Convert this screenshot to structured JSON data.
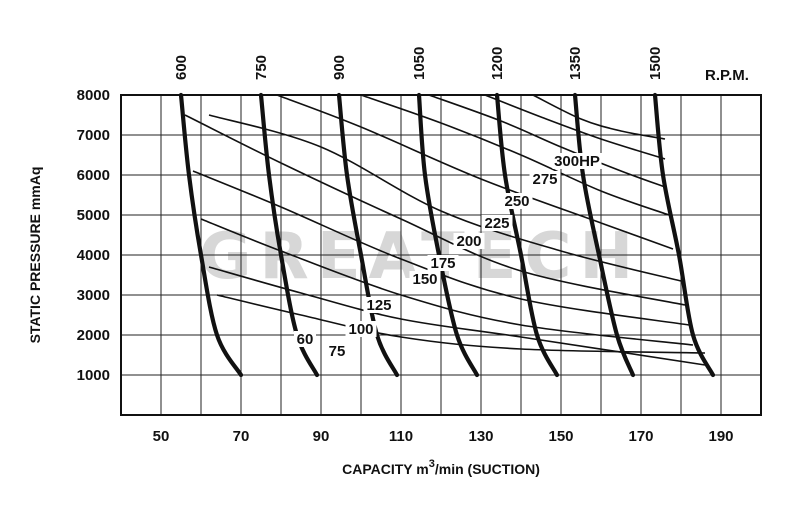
{
  "chart_data": {
    "type": "line",
    "xlabel": "CAPACITY",
    "xlabel_unit_base": "m",
    "xlabel_unit_sup": "3",
    "xlabel_unit_rest": "/min  (SUCTION)",
    "ylabel": "STATIC  PRESSURE  mmAq",
    "x_ticks": [
      "50",
      "70",
      "90",
      "110",
      "130",
      "150",
      "170",
      "190"
    ],
    "y_ticks": [
      "1000",
      "2000",
      "3000",
      "4000",
      "5000",
      "6000",
      "7000",
      "8000"
    ],
    "xlim": [
      40,
      200
    ],
    "ylim": [
      0,
      8000
    ],
    "grid": true,
    "watermark": "GREATECH",
    "rpm_unit_label": "R.P.M.",
    "rpm_series": [
      {
        "name": "600",
        "points": [
          [
            55,
            8000
          ],
          [
            57,
            6000
          ],
          [
            60,
            4000
          ],
          [
            64,
            2000
          ],
          [
            70,
            1000
          ]
        ]
      },
      {
        "name": "750",
        "points": [
          [
            75,
            8000
          ],
          [
            77,
            6000
          ],
          [
            80,
            4000
          ],
          [
            84,
            2000
          ],
          [
            89,
            1000
          ]
        ]
      },
      {
        "name": "900",
        "points": [
          [
            94.5,
            8000
          ],
          [
            96.5,
            6000
          ],
          [
            100,
            4000
          ],
          [
            104,
            2000
          ],
          [
            109,
            1000
          ]
        ]
      },
      {
        "name": "1050",
        "points": [
          [
            114.5,
            8000
          ],
          [
            116,
            6000
          ],
          [
            119.5,
            4000
          ],
          [
            124,
            2000
          ],
          [
            129,
            1000
          ]
        ]
      },
      {
        "name": "1200",
        "points": [
          [
            134,
            8000
          ],
          [
            136,
            6000
          ],
          [
            140,
            4000
          ],
          [
            144,
            2000
          ],
          [
            149,
            1000
          ]
        ]
      },
      {
        "name": "1350",
        "points": [
          [
            153.5,
            8000
          ],
          [
            155.5,
            6000
          ],
          [
            159.5,
            4000
          ],
          [
            164,
            2000
          ],
          [
            168,
            1000
          ]
        ]
      },
      {
        "name": "1500",
        "points": [
          [
            173.5,
            8000
          ],
          [
            175.5,
            6000
          ],
          [
            179.5,
            4000
          ],
          [
            183,
            2000
          ],
          [
            188,
            1000
          ]
        ]
      }
    ],
    "hp_series": [
      {
        "name": "60",
        "label_at": [
          86,
          1800
        ],
        "points": [
          [
            64,
            3000
          ],
          [
            85,
            2500
          ],
          [
            110,
            1950
          ],
          [
            140,
            1650
          ],
          [
            186,
            1550
          ]
        ]
      },
      {
        "name": "75",
        "label_at": [
          94,
          1500
        ],
        "points": [
          [
            62,
            3700
          ],
          [
            85,
            3050
          ],
          [
            110,
            2400
          ],
          [
            140,
            1950
          ],
          [
            186,
            1250
          ]
        ]
      },
      {
        "name": "100",
        "label_at": [
          100,
          2050
        ],
        "points": [
          [
            60,
            4900
          ],
          [
            80,
            4100
          ],
          [
            110,
            3000
          ],
          [
            140,
            2250
          ],
          [
            183,
            1750
          ]
        ]
      },
      {
        "name": "125",
        "label_at": [
          104.5,
          2650
        ],
        "points": [
          [
            58,
            6100
          ],
          [
            80,
            5200
          ],
          [
            110,
            3900
          ],
          [
            140,
            2900
          ],
          [
            182,
            2250
          ]
        ]
      },
      {
        "name": "150",
        "label_at": [
          116,
          3300
        ],
        "points": [
          [
            56,
            7500
          ],
          [
            80,
            6300
          ],
          [
            110,
            4900
          ],
          [
            140,
            3600
          ],
          [
            181,
            2750
          ]
        ]
      },
      {
        "name": "175",
        "label_at": [
          120.5,
          3700
        ],
        "points": [
          [
            62,
            7500
          ],
          [
            90,
            6700
          ],
          [
            120,
            5100
          ],
          [
            150,
            4100
          ],
          [
            180,
            3350
          ]
        ]
      },
      {
        "name": "200",
        "label_at": [
          127,
          4250
        ],
        "points": [
          [
            79,
            8000
          ],
          [
            100,
            7200
          ],
          [
            130,
            5900
          ],
          [
            160,
            4800
          ],
          [
            178,
            4150
          ]
        ]
      },
      {
        "name": "225",
        "label_at": [
          134,
          4700
        ],
        "points": [
          [
            100,
            8000
          ],
          [
            120,
            7300
          ],
          [
            140,
            6500
          ],
          [
            160,
            5600
          ],
          [
            177,
            5000
          ]
        ]
      },
      {
        "name": "250",
        "label_at": [
          139,
          5250
        ],
        "points": [
          [
            117,
            8000
          ],
          [
            135,
            7350
          ],
          [
            150,
            6700
          ],
          [
            165,
            6100
          ],
          [
            176,
            5700
          ]
        ]
      },
      {
        "name": "275",
        "label_at": [
          146,
          5800
        ],
        "points": [
          [
            131,
            8000
          ],
          [
            145,
            7450
          ],
          [
            160,
            6900
          ],
          [
            176,
            6400
          ]
        ]
      },
      {
        "name": "300HP",
        "label_at": [
          154,
          6250
        ],
        "points": [
          [
            143,
            8000
          ],
          [
            155,
            7400
          ],
          [
            165,
            7100
          ],
          [
            176,
            6900
          ]
        ]
      }
    ]
  }
}
